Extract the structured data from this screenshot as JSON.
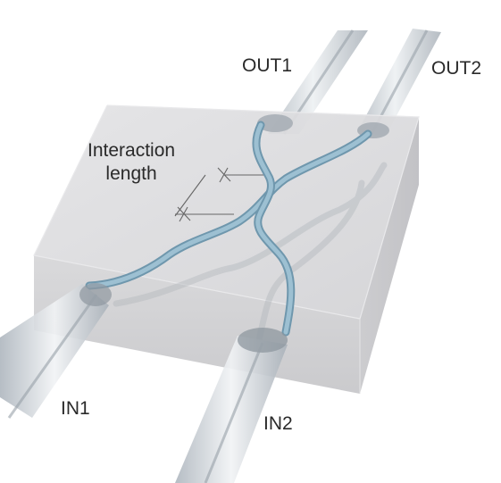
{
  "labels": {
    "out1": "OUT1",
    "out2": "OUT2",
    "in1": "IN1",
    "in2": "IN2",
    "interaction_line1": "Interaction",
    "interaction_line2": "length"
  },
  "colors": {
    "chip_top": "#d9d9db",
    "chip_front": "#cfcfd1",
    "chip_side": "#c4c4c7",
    "waveguide": "#8fb3c6",
    "waveguide_edge": "#6f97ad",
    "fiber": "#c9ced3",
    "fiber_highlight": "#f2f4f6",
    "fiber_core": "#a9b0b7",
    "label_text": "#2a2a2a"
  }
}
